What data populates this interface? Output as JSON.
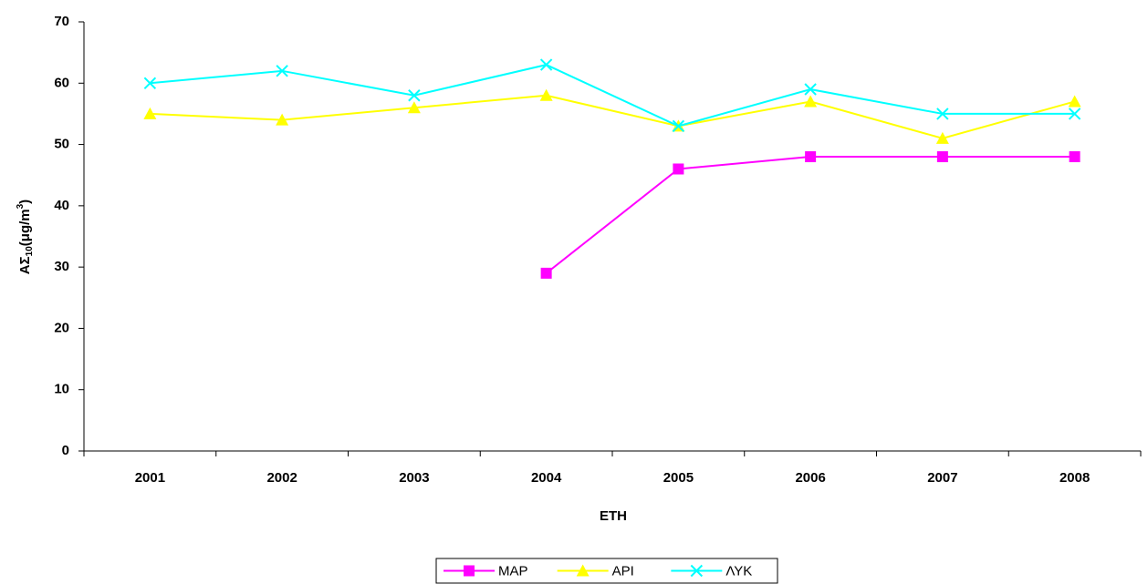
{
  "chart_data": {
    "type": "line",
    "ylabel": {
      "base": "ΑΣ",
      "sub": "10",
      "mid": "(μg/m",
      "sup": "3",
      "end": ")"
    },
    "xlabel": "ΕΤΗ",
    "categories": [
      "2001",
      "2002",
      "2003",
      "2004",
      "2005",
      "2006",
      "2007",
      "2008"
    ],
    "series": [
      {
        "name": "ΜΑΡ",
        "color": "#ff00ff",
        "marker": "square",
        "values": [
          null,
          null,
          null,
          29,
          46,
          48,
          48,
          48
        ]
      },
      {
        "name": "ΑΡΙ",
        "color": "#ffff00",
        "marker": "triangle",
        "values": [
          55,
          54,
          56,
          58,
          53,
          57,
          51,
          57
        ]
      },
      {
        "name": "ΛΥΚ",
        "color": "#00ffff",
        "marker": "x",
        "values": [
          60,
          62,
          58,
          63,
          53,
          59,
          55,
          55
        ]
      }
    ],
    "ylim": [
      0,
      70
    ],
    "yticks": [
      0,
      10,
      20,
      30,
      40,
      50,
      60,
      70
    ],
    "grid": false,
    "legend": "bottom"
  }
}
